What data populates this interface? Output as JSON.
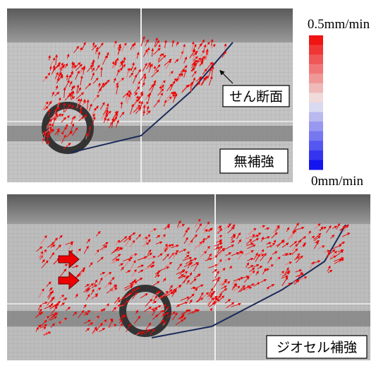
{
  "colorbar": {
    "max_label": "0.5mm/min",
    "min_label": "0mm/min"
  },
  "panels": [
    {
      "label": "無補強",
      "annotation": "せん断面"
    },
    {
      "label": "ジオセル補強"
    }
  ]
}
